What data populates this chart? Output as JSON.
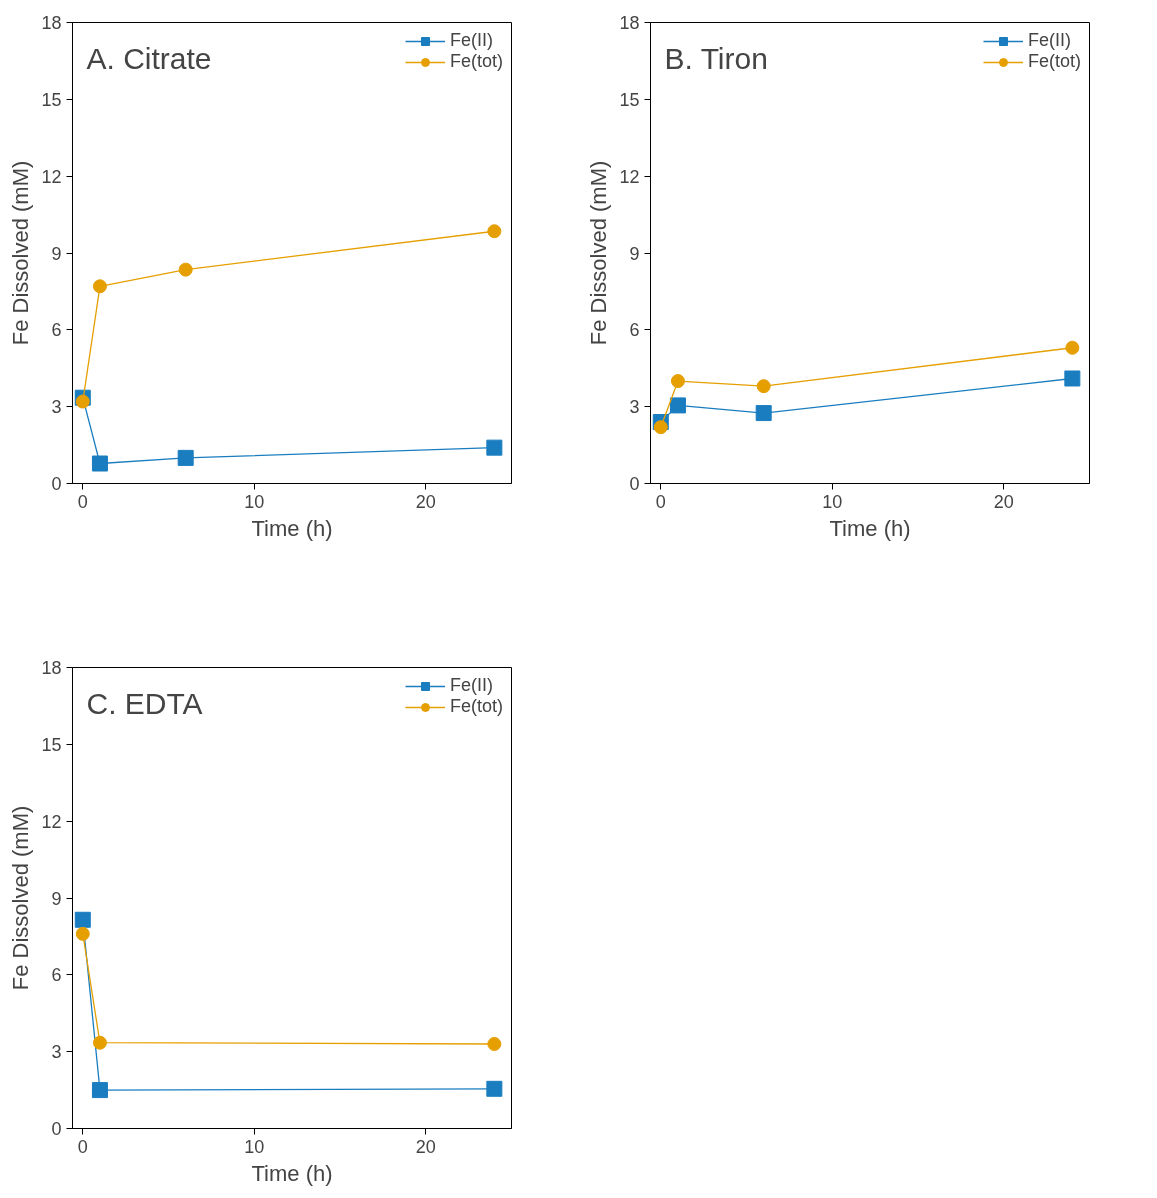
{
  "chart_data": [
    {
      "type": "line",
      "title": "A. Citrate",
      "xlabel": "Time (h)",
      "ylabel": "Fe Dissolved (mM)",
      "x": [
        0,
        1,
        6,
        24
      ],
      "xlim": [
        -0.6,
        25
      ],
      "ylim": [
        0,
        18
      ],
      "xticks": [
        0,
        10,
        20
      ],
      "yticks": [
        0,
        3,
        6,
        9,
        12,
        15,
        18
      ],
      "grid": false,
      "legend": "top right",
      "line_style": "solid",
      "series": [
        {
          "name": "Fe(II)",
          "color": "#1a7dc0",
          "marker": "square",
          "values": [
            3.35,
            0.78,
            1.0,
            1.4
          ]
        },
        {
          "name": "Fe(tot)",
          "color": "#e69f00",
          "marker": "circle",
          "values": [
            3.2,
            7.7,
            8.35,
            9.85
          ]
        }
      ]
    },
    {
      "type": "line",
      "title": "B. Tiron",
      "xlabel": "Time (h)",
      "ylabel": "Fe Dissolved (mM)",
      "x": [
        0,
        1,
        6,
        24
      ],
      "xlim": [
        -0.6,
        25
      ],
      "ylim": [
        0,
        18
      ],
      "xticks": [
        0,
        10,
        20
      ],
      "yticks": [
        0,
        3,
        6,
        9,
        12,
        15,
        18
      ],
      "grid": false,
      "legend": "top right",
      "line_style": "solid",
      "series": [
        {
          "name": "Fe(II)",
          "color": "#1a7dc0",
          "marker": "square",
          "values": [
            2.4,
            3.05,
            2.75,
            4.1
          ]
        },
        {
          "name": "Fe(tot)",
          "color": "#e69f00",
          "marker": "circle",
          "values": [
            2.2,
            4.0,
            3.8,
            5.3
          ]
        }
      ]
    },
    {
      "type": "line",
      "title": "C. EDTA",
      "xlabel": "Time (h)",
      "ylabel": "Fe Dissolved (mM)",
      "x": [
        0,
        1,
        24
      ],
      "xlim": [
        -0.6,
        25
      ],
      "ylim": [
        0,
        18
      ],
      "xticks": [
        0,
        10,
        20
      ],
      "yticks": [
        0,
        3,
        6,
        9,
        12,
        15,
        18
      ],
      "grid": false,
      "legend": "top right",
      "line_style": "solid",
      "series": [
        {
          "name": "Fe(II)",
          "color": "#1a7dc0",
          "marker": "square",
          "values": [
            8.15,
            1.5,
            1.55
          ]
        },
        {
          "name": "Fe(tot)",
          "color": "#e69f00",
          "marker": "circle",
          "values": [
            7.6,
            3.35,
            3.3
          ]
        }
      ]
    }
  ]
}
